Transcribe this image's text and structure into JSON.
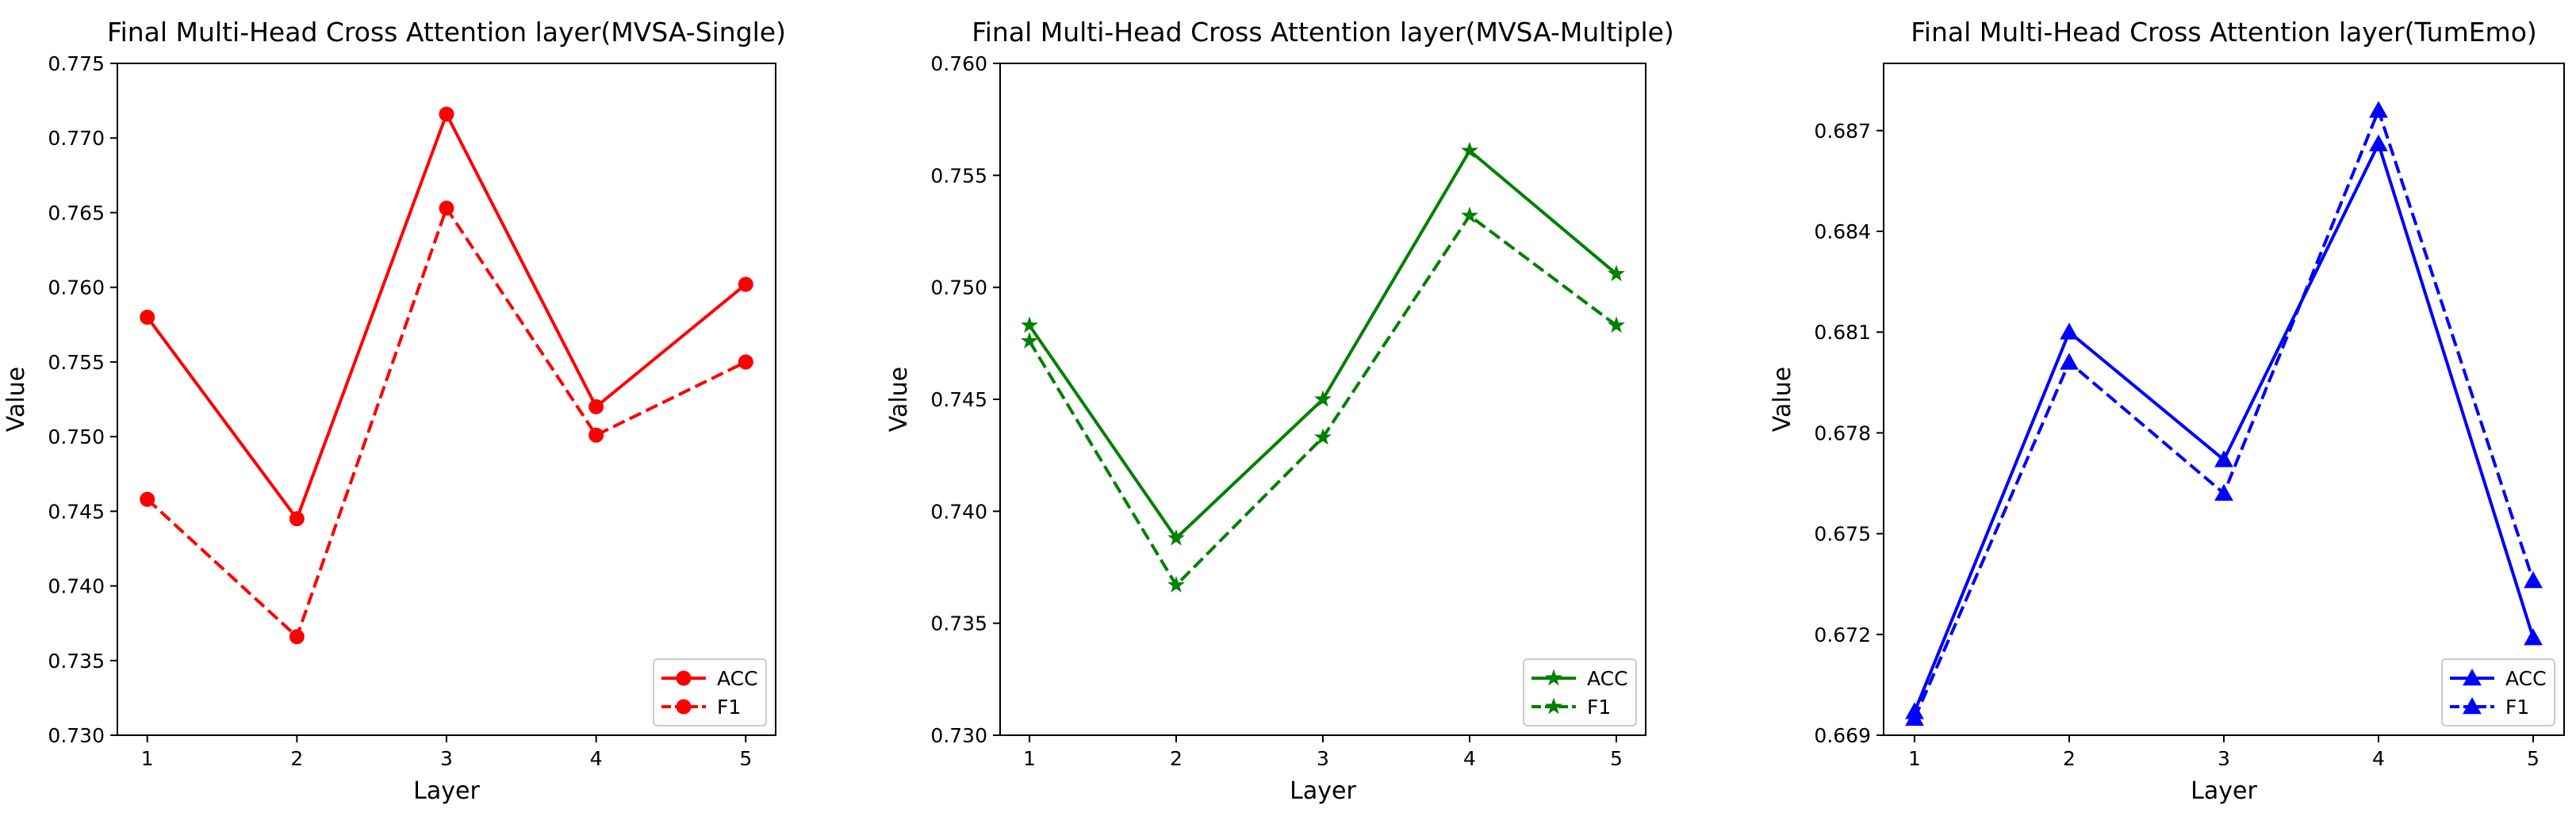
{
  "chart_data": [
    {
      "type": "line",
      "title": "Final Multi-Head Cross Attention layer(MVSA-Single)",
      "xlabel": "Layer",
      "ylabel": "Value",
      "x": [
        1,
        2,
        3,
        4,
        5
      ],
      "xlim": [
        0.8,
        5.2
      ],
      "ylim": [
        0.73,
        0.775
      ],
      "yticks": [
        "0.730",
        "0.735",
        "0.740",
        "0.745",
        "0.750",
        "0.755",
        "0.760",
        "0.765",
        "0.770",
        "0.775"
      ],
      "grid": false,
      "legend_position": "lower-right",
      "color": "#ff0000",
      "marker": "circle",
      "series": [
        {
          "name": "ACC",
          "style": "solid",
          "values": [
            0.758,
            0.7445,
            0.7716,
            0.752,
            0.7602
          ]
        },
        {
          "name": "F1",
          "style": "dashed",
          "values": [
            0.7458,
            0.7366,
            0.7653,
            0.7501,
            0.755
          ]
        }
      ]
    },
    {
      "type": "line",
      "title": "Final Multi-Head Cross Attention layer(MVSA-Multiple)",
      "xlabel": "Layer",
      "ylabel": "Value",
      "x": [
        1,
        2,
        3,
        4,
        5
      ],
      "xlim": [
        0.8,
        5.2
      ],
      "ylim": [
        0.73,
        0.76
      ],
      "yticks": [
        "0.730",
        "0.735",
        "0.740",
        "0.745",
        "0.750",
        "0.755",
        "0.760"
      ],
      "grid": false,
      "legend_position": "lower-right",
      "color": "#008000",
      "marker": "star",
      "series": [
        {
          "name": "ACC",
          "style": "solid",
          "values": [
            0.7483,
            0.7388,
            0.745,
            0.7561,
            0.7506
          ]
        },
        {
          "name": "F1",
          "style": "dashed",
          "values": [
            0.7476,
            0.7367,
            0.7433,
            0.7532,
            0.7483
          ]
        }
      ]
    },
    {
      "type": "line",
      "title": "Final Multi-Head Cross Attention layer(TumEmo)",
      "xlabel": "Layer",
      "ylabel": "Value",
      "x": [
        1,
        2,
        3,
        4,
        5
      ],
      "xlim": [
        0.8,
        5.2
      ],
      "ylim": [
        0.669,
        0.689
      ],
      "yticks": [
        "0.669",
        "0.672",
        "0.675",
        "0.678",
        "0.681",
        "0.684",
        "0.687"
      ],
      "grid": false,
      "legend_position": "lower-right",
      "color": "#0000ff",
      "marker": "triangle",
      "series": [
        {
          "name": "ACC",
          "style": "solid",
          "values": [
            0.6697,
            0.681,
            0.6772,
            0.6866,
            0.6719
          ]
        },
        {
          "name": "F1",
          "style": "dashed",
          "values": [
            0.6695,
            0.6801,
            0.6762,
            0.6876,
            0.6736
          ]
        }
      ]
    }
  ]
}
